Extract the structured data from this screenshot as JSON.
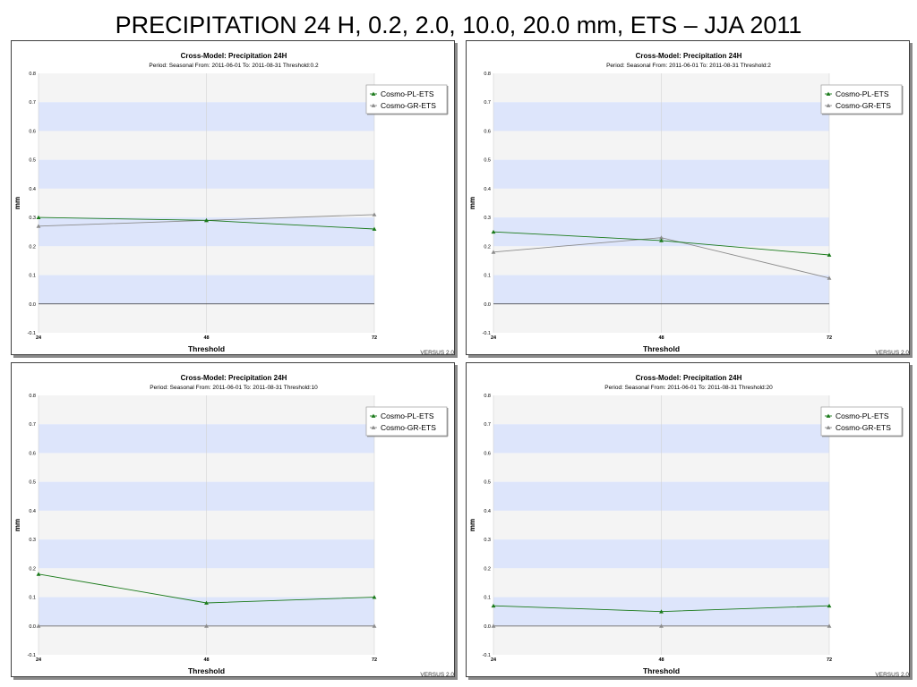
{
  "page": {
    "title": "PRECIPITATION 24 H, 0.2, 2.0, 10.0, 20.0 mm, ETS – JJA 2011"
  },
  "colors": {
    "band_blue": "#dde5fb",
    "band_grey": "#f4f4f4",
    "pl_series": "#1a7a1a",
    "gr_series": "#8c8c8c",
    "zero_line": "#333333"
  },
  "chart_data": [
    {
      "type": "line",
      "title": "Cross-Model: Precipitation 24H",
      "subtitle": "Period: Seasonal From: 2011-06-01  To: 2011-08-31 Threshold:0.2",
      "xlabel": "Threshold",
      "ylabel": "mm",
      "x": [
        24,
        48,
        72
      ],
      "ylim": [
        -0.1,
        0.8
      ],
      "yticks": [
        "0.8",
        "0.7",
        "0.6",
        "0.5",
        "0.4",
        "0.3",
        "0.2",
        "0.1",
        "0.0",
        "-0.1"
      ],
      "legend_position": "top-right",
      "version": "VERSUS 2.0",
      "series": [
        {
          "name": "Cosmo-PL-ETS",
          "values": [
            0.3,
            0.29,
            0.26
          ]
        },
        {
          "name": "Cosmo-GR-ETS",
          "values": [
            0.27,
            0.29,
            0.31
          ]
        }
      ]
    },
    {
      "type": "line",
      "title": "Cross-Model: Precipitation 24H",
      "subtitle": "Period: Seasonal From: 2011-06-01  To: 2011-08-31 Threshold:2",
      "xlabel": "Threshold",
      "ylabel": "mm",
      "x": [
        24,
        48,
        72
      ],
      "ylim": [
        -0.1,
        0.8
      ],
      "yticks": [
        "0.8",
        "0.7",
        "0.6",
        "0.5",
        "0.4",
        "0.3",
        "0.2",
        "0.1",
        "0.0",
        "-0.1"
      ],
      "legend_position": "top-right",
      "version": "VERSUS 2.0",
      "series": [
        {
          "name": "Cosmo-PL-ETS",
          "values": [
            0.25,
            0.22,
            0.17
          ]
        },
        {
          "name": "Cosmo-GR-ETS",
          "values": [
            0.18,
            0.23,
            0.09
          ]
        }
      ]
    },
    {
      "type": "line",
      "title": "Cross-Model: Precipitation 24H",
      "subtitle": "Period: Seasonal From: 2011-06-01  To: 2011-08-31 Threshold:10",
      "xlabel": "Threshold",
      "ylabel": "mm",
      "x": [
        24,
        48,
        72
      ],
      "ylim": [
        -0.1,
        0.8
      ],
      "yticks": [
        "0.8",
        "0.7",
        "0.6",
        "0.5",
        "0.4",
        "0.3",
        "0.2",
        "0.1",
        "0.0",
        "-0.1"
      ],
      "legend_position": "top-right",
      "version": "VERSUS 2.0",
      "series": [
        {
          "name": "Cosmo-PL-ETS",
          "values": [
            0.18,
            0.08,
            0.1
          ]
        },
        {
          "name": "Cosmo-GR-ETS",
          "values": [
            0.0,
            0.0,
            0.0
          ]
        }
      ]
    },
    {
      "type": "line",
      "title": "Cross-Model: Precipitation 24H",
      "subtitle": "Period: Seasonal From: 2011-06-01  To: 2011-08-31 Threshold:20",
      "xlabel": "Threshold",
      "ylabel": "mm",
      "x": [
        24,
        48,
        72
      ],
      "ylim": [
        -0.1,
        0.8
      ],
      "yticks": [
        "0.8",
        "0.7",
        "0.6",
        "0.5",
        "0.4",
        "0.3",
        "0.2",
        "0.1",
        "0.0",
        "-0.1"
      ],
      "legend_position": "top-right",
      "version": "VERSUS 2.0",
      "series": [
        {
          "name": "Cosmo-PL-ETS",
          "values": [
            0.07,
            0.05,
            0.07
          ]
        },
        {
          "name": "Cosmo-GR-ETS",
          "values": [
            0.0,
            0.0,
            0.0
          ]
        }
      ]
    }
  ]
}
